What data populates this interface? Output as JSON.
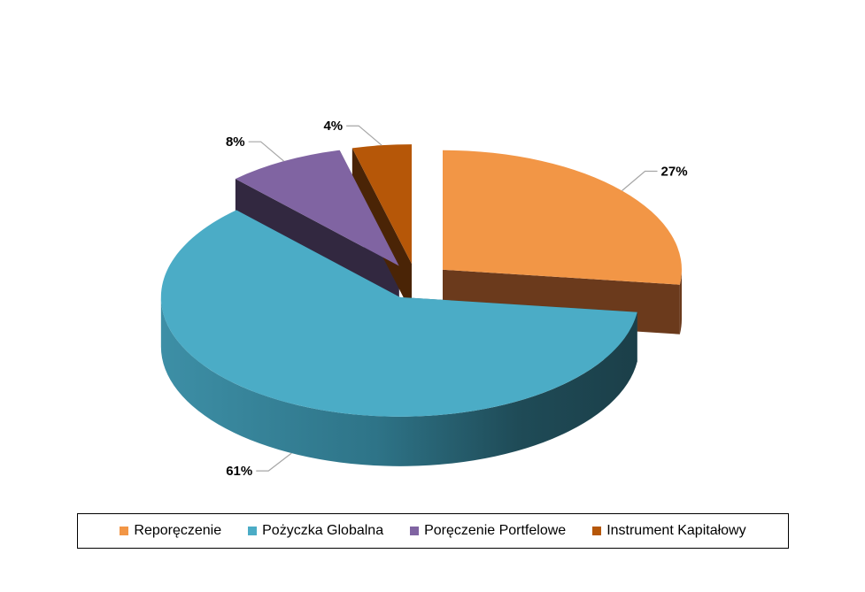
{
  "chart_data": {
    "type": "pie",
    "variant": "3d-exploded",
    "series": [
      {
        "name": "Reporęczenie",
        "value": 27,
        "label": "27%",
        "color": "#F29646",
        "side_color": "#6B3A1C"
      },
      {
        "name": "Pożyczka Globalna",
        "value": 61,
        "label": "61%",
        "color": "#4BACC6",
        "side_color": "#215967"
      },
      {
        "name": "Poręczenie Portfelowe",
        "value": 8,
        "label": "8%",
        "color": "#8064A2",
        "side_color": "#322840"
      },
      {
        "name": "Instrument Kapitałowy",
        "value": 4,
        "label": "4%",
        "color": "#B65708",
        "side_color": "#4A2406"
      }
    ],
    "legend_position": "bottom",
    "title": ""
  }
}
